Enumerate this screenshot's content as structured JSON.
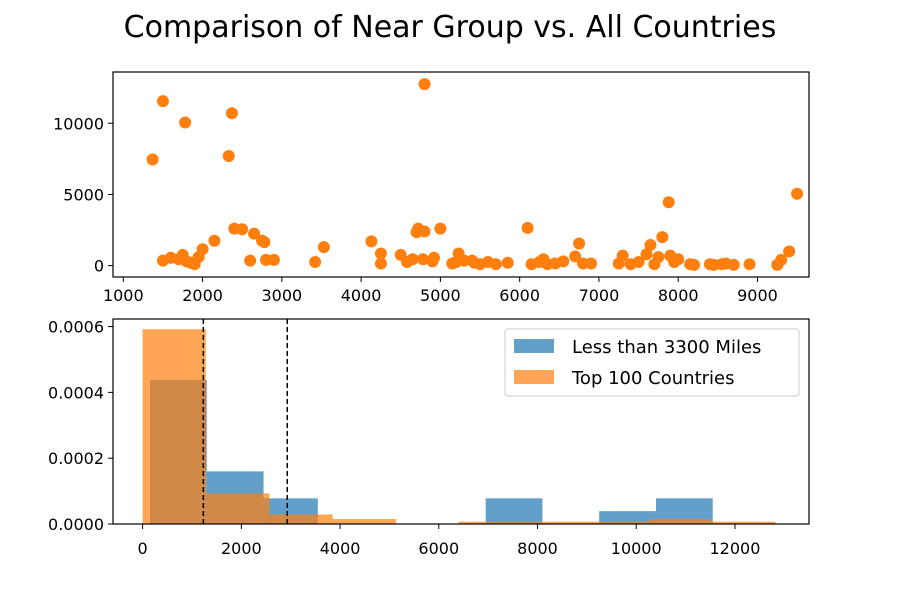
{
  "title": "Comparison of Near Group vs. All Countries",
  "colors": {
    "blue": "#1f77b4",
    "orange": "#ff7f0e"
  },
  "chart_data": [
    {
      "type": "scatter",
      "xlim": [
        870,
        9650
      ],
      "ylim": [
        -800,
        13600
      ],
      "xticks": [
        1000,
        2000,
        3000,
        4000,
        5000,
        6000,
        7000,
        8000,
        9000
      ],
      "yticks": [
        0,
        5000,
        10000
      ],
      "series": [
        {
          "color": "#ff7f0e",
          "points": [
            [
              1370,
              7450
            ],
            [
              1500,
              11550
            ],
            [
              1500,
              350
            ],
            [
              1600,
              550
            ],
            [
              1700,
              450
            ],
            [
              1750,
              750
            ],
            [
              1780,
              10050
            ],
            [
              1800,
              300
            ],
            [
              1850,
              200
            ],
            [
              1900,
              100
            ],
            [
              1950,
              600
            ],
            [
              2000,
              1150
            ],
            [
              2150,
              1750
            ],
            [
              2330,
              7700
            ],
            [
              2370,
              10700
            ],
            [
              2400,
              2600
            ],
            [
              2500,
              2550
            ],
            [
              2600,
              350
            ],
            [
              2650,
              2250
            ],
            [
              2750,
              1750
            ],
            [
              2780,
              1650
            ],
            [
              2800,
              400
            ],
            [
              2900,
              400
            ],
            [
              3420,
              250
            ],
            [
              3530,
              1300
            ],
            [
              4130,
              1700
            ],
            [
              4250,
              850
            ],
            [
              4250,
              150
            ],
            [
              4500,
              750
            ],
            [
              4580,
              250
            ],
            [
              4650,
              450
            ],
            [
              4700,
              2350
            ],
            [
              4720,
              2600
            ],
            [
              4780,
              450
            ],
            [
              4800,
              2400
            ],
            [
              4800,
              12750
            ],
            [
              4900,
              300
            ],
            [
              4920,
              550
            ],
            [
              5000,
              2600
            ],
            [
              5150,
              150
            ],
            [
              5200,
              250
            ],
            [
              5230,
              850
            ],
            [
              5300,
              350
            ],
            [
              5400,
              350
            ],
            [
              5430,
              200
            ],
            [
              5500,
              100
            ],
            [
              5600,
              250
            ],
            [
              5700,
              100
            ],
            [
              5850,
              200
            ],
            [
              6100,
              2650
            ],
            [
              6150,
              100
            ],
            [
              6250,
              250
            ],
            [
              6300,
              450
            ],
            [
              6350,
              100
            ],
            [
              6450,
              150
            ],
            [
              6550,
              300
            ],
            [
              6700,
              650
            ],
            [
              6750,
              1550
            ],
            [
              6800,
              150
            ],
            [
              6900,
              150
            ],
            [
              7250,
              150
            ],
            [
              7300,
              700
            ],
            [
              7400,
              100
            ],
            [
              7500,
              250
            ],
            [
              7600,
              800
            ],
            [
              7650,
              1450
            ],
            [
              7700,
              100
            ],
            [
              7750,
              600
            ],
            [
              7800,
              2000
            ],
            [
              7880,
              4450
            ],
            [
              7900,
              700
            ],
            [
              7950,
              250
            ],
            [
              8000,
              450
            ],
            [
              8150,
              100
            ],
            [
              8200,
              50
            ],
            [
              8400,
              100
            ],
            [
              8450,
              50
            ],
            [
              8550,
              100
            ],
            [
              8600,
              150
            ],
            [
              8700,
              50
            ],
            [
              8900,
              100
            ],
            [
              9250,
              50
            ],
            [
              9300,
              400
            ],
            [
              9400,
              1000
            ],
            [
              9500,
              5050
            ]
          ]
        }
      ]
    },
    {
      "type": "bar",
      "xlim": [
        -600,
        13500
      ],
      "ylim": [
        0,
        0.000623
      ],
      "xticks": [
        0,
        2000,
        4000,
        6000,
        8000,
        10000,
        12000
      ],
      "yticks": [
        0,
        0.0002,
        0.0004,
        0.0006
      ],
      "ytick_labels": [
        "0.0000",
        "0.0002",
        "0.0004",
        "0.0006"
      ],
      "vlines": [
        1230,
        2930
      ],
      "legend": {
        "position": "top-right",
        "entries": [
          {
            "label": "Less than 3300 Miles",
            "color": "#1f77b4"
          },
          {
            "label": "Top 100 Countries",
            "color": "#ff7f0e"
          }
        ]
      },
      "series": [
        {
          "name": "Less than 3300 Miles",
          "color": "#1f77b4",
          "opacity": 0.7,
          "bins": [
            [
              150,
              1300,
              0.000438
            ],
            [
              1300,
              2450,
              0.00016
            ],
            [
              2450,
              3550,
              7.8e-05
            ],
            [
              3550,
              6950,
              0
            ],
            [
              6950,
              8100,
              7.8e-05
            ],
            [
              8100,
              9250,
              0
            ],
            [
              9250,
              10400,
              3.9e-05
            ],
            [
              10400,
              11550,
              7.8e-05
            ]
          ]
        },
        {
          "name": "Top 100 Countries",
          "color": "#ff7f0e",
          "opacity": 0.7,
          "bins": [
            [
              0,
              1280,
              0.000592
            ],
            [
              1280,
              2570,
              9.3e-05
            ],
            [
              2570,
              3850,
              2.9e-05
            ],
            [
              3850,
              5130,
              1.5e-05
            ],
            [
              5130,
              6400,
              0
            ],
            [
              6400,
              7690,
              7e-06
            ],
            [
              7690,
              8970,
              7e-06
            ],
            [
              8970,
              10250,
              7e-06
            ],
            [
              10250,
              11540,
              1.5e-05
            ],
            [
              11540,
              12820,
              7e-06
            ]
          ]
        }
      ]
    }
  ]
}
